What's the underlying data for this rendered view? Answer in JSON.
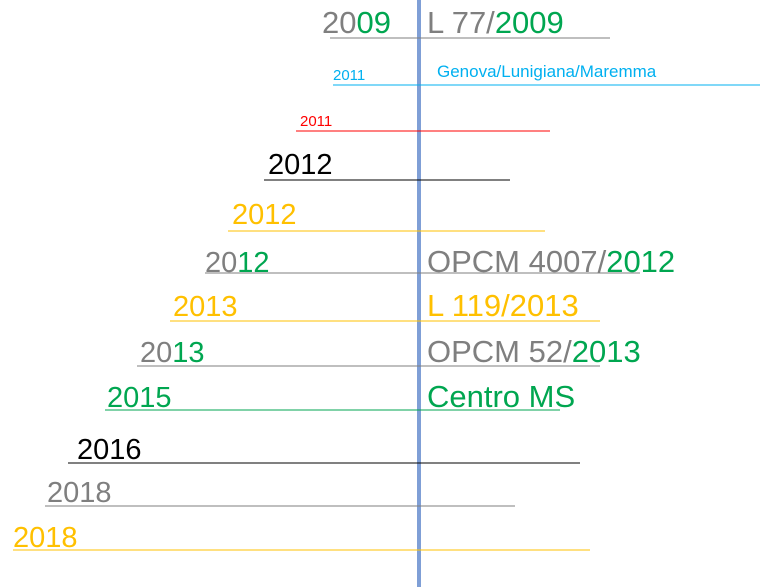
{
  "entries": [
    {
      "year": [
        {
          "text": "20",
          "color": "#7f7f7f"
        },
        {
          "text": "09",
          "color": "#00a650"
        }
      ],
      "label": [
        {
          "text": "L 77/",
          "color": "#7f7f7f"
        },
        {
          "text": "2009",
          "color": "#00a650"
        }
      ]
    },
    {
      "year": [
        {
          "text": "2011",
          "color": "#00b0f0"
        }
      ],
      "label": [
        {
          "text": "Genova/Lunigiana/Maremma",
          "color": "#00b0f0"
        }
      ]
    },
    {
      "year": [
        {
          "text": "2011",
          "color": "#ff0000"
        }
      ],
      "label": []
    },
    {
      "year": [
        {
          "text": "2012",
          "color": "#000000"
        }
      ],
      "label": []
    },
    {
      "year": [
        {
          "text": "2012",
          "color": "#ffc000"
        }
      ],
      "label": []
    },
    {
      "year": [
        {
          "text": "20",
          "color": "#7f7f7f"
        },
        {
          "text": "12",
          "color": "#00a650"
        }
      ],
      "label": [
        {
          "text": "OPCM 4007/",
          "color": "#7f7f7f"
        },
        {
          "text": "2012",
          "color": "#00a650"
        }
      ]
    },
    {
      "year": [
        {
          "text": "2013",
          "color": "#ffc000"
        }
      ],
      "label": [
        {
          "text": "L 119/2013",
          "color": "#ffc000"
        }
      ]
    },
    {
      "year": [
        {
          "text": "20",
          "color": "#7f7f7f"
        },
        {
          "text": "13",
          "color": "#00a650"
        }
      ],
      "label": [
        {
          "text": "OPCM 52/",
          "color": "#7f7f7f"
        },
        {
          "text": "2013",
          "color": "#00a650"
        }
      ]
    },
    {
      "year": [
        {
          "text": "2015",
          "color": "#00a650"
        }
      ],
      "label": [
        {
          "text": "Centro MS",
          "color": "#00a650"
        }
      ]
    },
    {
      "year": [
        {
          "text": "2016",
          "color": "#000000"
        }
      ],
      "label": []
    },
    {
      "year": [
        {
          "text": "2018",
          "color": "#7f7f7f"
        }
      ],
      "label": []
    },
    {
      "year": [
        {
          "text": "2018",
          "color": "#ffc000"
        }
      ],
      "label": []
    }
  ]
}
